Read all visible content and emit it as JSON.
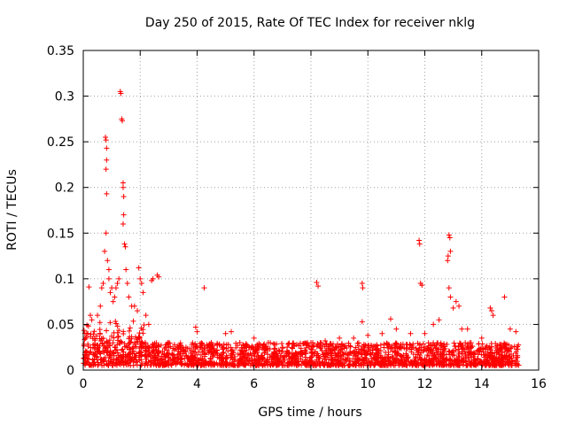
{
  "chart_data": {
    "type": "scatter",
    "title": "Day 250 of 2015, Rate Of TEC Index for receiver nklg",
    "xlabel": "GPS time / hours",
    "ylabel": "ROTI / TECUs",
    "xlim": [
      0,
      16
    ],
    "ylim": [
      0,
      0.35
    ],
    "xticks": [
      "0",
      "2",
      "4",
      "6",
      "8",
      "10",
      "12",
      "14",
      "16"
    ],
    "yticks": [
      "0",
      "0.05",
      "0.1",
      "0.15",
      "0.2",
      "0.25",
      "0.3",
      "0.35"
    ],
    "grid": true,
    "marker": "+",
    "color": "#ff0000",
    "series": [
      {
        "name": "ROTI",
        "background_band": {
          "x_start": 0.0,
          "x_end": 15.3,
          "y_min": 0.005,
          "y_max": 0.03
        },
        "points": [
          [
            0.2,
            0.091
          ],
          [
            0.25,
            0.06
          ],
          [
            0.3,
            0.055
          ],
          [
            0.5,
            0.06
          ],
          [
            0.6,
            0.07
          ],
          [
            0.65,
            0.09
          ],
          [
            0.7,
            0.095
          ],
          [
            0.75,
            0.13
          ],
          [
            0.78,
            0.255
          ],
          [
            0.8,
            0.252
          ],
          [
            0.8,
            0.22
          ],
          [
            0.82,
            0.243
          ],
          [
            0.82,
            0.23
          ],
          [
            0.82,
            0.193
          ],
          [
            0.8,
            0.15
          ],
          [
            0.85,
            0.12
          ],
          [
            0.9,
            0.1
          ],
          [
            0.9,
            0.11
          ],
          [
            0.95,
            0.085
          ],
          [
            1.0,
            0.09
          ],
          [
            1.05,
            0.075
          ],
          [
            1.1,
            0.08
          ],
          [
            1.15,
            0.09
          ],
          [
            1.2,
            0.095
          ],
          [
            1.25,
            0.1
          ],
          [
            1.3,
            0.305
          ],
          [
            1.32,
            0.303
          ],
          [
            1.35,
            0.275
          ],
          [
            1.37,
            0.273
          ],
          [
            1.4,
            0.205
          ],
          [
            1.4,
            0.2
          ],
          [
            1.42,
            0.19
          ],
          [
            1.42,
            0.17
          ],
          [
            1.4,
            0.16
          ],
          [
            1.45,
            0.138
          ],
          [
            1.48,
            0.135
          ],
          [
            1.5,
            0.11
          ],
          [
            1.55,
            0.095
          ],
          [
            1.6,
            0.08
          ],
          [
            1.7,
            0.07
          ],
          [
            1.8,
            0.07
          ],
          [
            1.9,
            0.065
          ],
          [
            1.95,
            0.112
          ],
          [
            2.0,
            0.1
          ],
          [
            2.05,
            0.095
          ],
          [
            2.1,
            0.085
          ],
          [
            2.2,
            0.06
          ],
          [
            2.3,
            0.05
          ],
          [
            2.4,
            0.098
          ],
          [
            2.45,
            0.1
          ],
          [
            2.6,
            0.104
          ],
          [
            2.65,
            0.102
          ],
          [
            3.0,
            0.025
          ],
          [
            3.5,
            0.025
          ],
          [
            3.95,
            0.047
          ],
          [
            4.0,
            0.042
          ],
          [
            4.25,
            0.09
          ],
          [
            4.5,
            0.03
          ],
          [
            5.0,
            0.04
          ],
          [
            5.2,
            0.042
          ],
          [
            5.5,
            0.03
          ],
          [
            6.0,
            0.035
          ],
          [
            6.5,
            0.03
          ],
          [
            7.0,
            0.025
          ],
          [
            7.5,
            0.028
          ],
          [
            8.0,
            0.03
          ],
          [
            8.2,
            0.096
          ],
          [
            8.25,
            0.092
          ],
          [
            8.5,
            0.032
          ],
          [
            9.0,
            0.035
          ],
          [
            9.5,
            0.035
          ],
          [
            9.8,
            0.095
          ],
          [
            9.82,
            0.09
          ],
          [
            9.8,
            0.053
          ],
          [
            10.0,
            0.038
          ],
          [
            10.5,
            0.04
          ],
          [
            10.8,
            0.056
          ],
          [
            11.0,
            0.045
          ],
          [
            11.5,
            0.04
          ],
          [
            11.8,
            0.142
          ],
          [
            11.82,
            0.138
          ],
          [
            11.85,
            0.095
          ],
          [
            11.9,
            0.093
          ],
          [
            12.0,
            0.04
          ],
          [
            12.3,
            0.05
          ],
          [
            12.5,
            0.055
          ],
          [
            12.8,
            0.12
          ],
          [
            12.82,
            0.125
          ],
          [
            12.85,
            0.148
          ],
          [
            12.88,
            0.145
          ],
          [
            12.9,
            0.13
          ],
          [
            12.85,
            0.09
          ],
          [
            12.9,
            0.08
          ],
          [
            13.0,
            0.068
          ],
          [
            13.1,
            0.075
          ],
          [
            13.2,
            0.07
          ],
          [
            13.3,
            0.045
          ],
          [
            13.5,
            0.045
          ],
          [
            14.0,
            0.035
          ],
          [
            14.3,
            0.068
          ],
          [
            14.35,
            0.065
          ],
          [
            14.4,
            0.06
          ],
          [
            14.8,
            0.08
          ],
          [
            15.0,
            0.045
          ],
          [
            15.2,
            0.042
          ]
        ]
      }
    ]
  }
}
